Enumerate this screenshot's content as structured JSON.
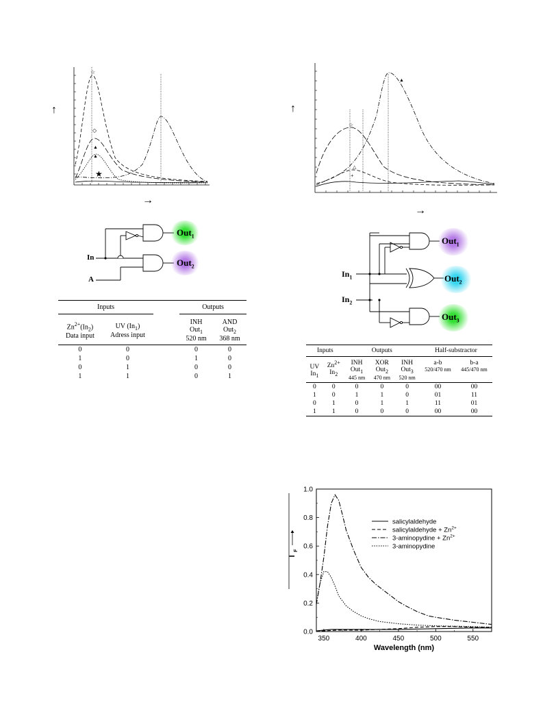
{
  "fig_a": {
    "arrow_up": "↑",
    "arrow_right": "→",
    "markers": [
      "☆",
      "◇",
      "▲",
      "▲",
      "★"
    ]
  },
  "fig_b": {
    "arrow_up": "↑",
    "arrow_right": "→",
    "markers": [
      "▲",
      "☆",
      "△",
      "+"
    ]
  },
  "circuit_a": {
    "input_in": "In",
    "input_a": "A",
    "out1": "Out",
    "out1_sub": "1",
    "out2": "Out",
    "out2_sub": "2",
    "out1_color": "#34e034",
    "out2_color": "#b57be6"
  },
  "circuit_b": {
    "in1": "In",
    "in1_sub": "1",
    "in2": "In",
    "in2_sub": "2",
    "out1": "Out",
    "out1_sub": "1",
    "out2": "Out",
    "out2_sub": "2",
    "out3": "Out",
    "out3_sub": "3",
    "out1_color": "#b57be6",
    "out2_color": "#39d6f0",
    "out3_color": "#34e034"
  },
  "table_a": {
    "group_inputs": "Inputs",
    "group_outputs": "Outputs",
    "col1_a": "Zn",
    "col1_sup": "2+",
    "col1_b": "(In",
    "col1_sub": "2",
    "col1_c": ")",
    "col1_line2": "Data input",
    "col2_a": "UV (In",
    "col2_sub": "1",
    "col2_b": ")",
    "col2_line2": "Adress input",
    "col3_line1": "INH",
    "col3_line2": "Out",
    "col3_sub": "1",
    "col3_line3": "520 nm",
    "col4_line1": "AND",
    "col4_line2": "Out",
    "col4_sub": "2",
    "col4_line3": "368 nm",
    "rows": [
      [
        "0",
        "0",
        "0",
        "0"
      ],
      [
        "1",
        "0",
        "1",
        "0"
      ],
      [
        "0",
        "1",
        "0",
        "0"
      ],
      [
        "1",
        "1",
        "0",
        "1"
      ]
    ]
  },
  "table_b": {
    "group_inputs": "Inputs",
    "group_outputs": "Outputs",
    "group_half": "Half-substractor",
    "uv": "UV",
    "in1": "In",
    "in1_sub": "1",
    "zn": "Zn",
    "zn_sup": "2+",
    "in2": "In",
    "in2_sub": "2",
    "inh1": "INH",
    "out1": "Out",
    "out1_sub": "1",
    "wl1": "445 nm",
    "xor": "XOR",
    "out2": "Out",
    "out2_sub": "2",
    "wl2": "470 nm",
    "inh3": "INH",
    "out3": "Out",
    "out3_sub": "3",
    "wl3": "520 nm",
    "amb": "a-b",
    "amb_wl": "520/470 nm",
    "bma": "b-a",
    "bma_wl": "445/470 nm",
    "rows": [
      [
        "0",
        "0",
        "0",
        "0",
        "0",
        "00",
        "00"
      ],
      [
        "1",
        "0",
        "1",
        "1",
        "0",
        "01",
        "11"
      ],
      [
        "0",
        "1",
        "0",
        "1",
        "1",
        "11",
        "01"
      ],
      [
        "1",
        "1",
        "0",
        "0",
        "0",
        "00",
        "00"
      ]
    ]
  },
  "chart_data": {
    "type": "line",
    "xlabel": "Wavelength (nm)",
    "ylabel": "I",
    "ylabel_sub": "F",
    "xlim": [
      340,
      575
    ],
    "ylim": [
      0.0,
      1.0
    ],
    "xticks": [
      350,
      400,
      450,
      500,
      550
    ],
    "yticks": [
      0.0,
      0.2,
      0.4,
      0.6,
      0.8,
      1.0
    ],
    "xtick_labels": [
      "350",
      "400",
      "450",
      "500",
      "550"
    ],
    "ytick_labels": [
      "0.0",
      "0.2",
      "0.4",
      "0.6",
      "0.8",
      "1.0"
    ],
    "legend_placement": "top-right",
    "series": [
      {
        "name": "salicylaldehyde",
        "dash": "solid",
        "x": [
          340,
          350,
          360,
          380,
          400,
          450,
          500,
          550,
          575
        ],
        "y": [
          0.005,
          0.01,
          0.015,
          0.015,
          0.015,
          0.015,
          0.02,
          0.025,
          0.025
        ]
      },
      {
        "name": "salicylaldehyde + Zn",
        "name_sup": "2+",
        "dash": "dashed",
        "x": [
          340,
          350,
          370,
          400,
          450,
          475,
          500,
          525,
          550,
          575
        ],
        "y": [
          0.0,
          0.005,
          0.01,
          0.01,
          0.02,
          0.03,
          0.035,
          0.035,
          0.03,
          0.03
        ]
      },
      {
        "name": "3-aminopydine + Zn",
        "name_sup": "2+",
        "dash": "dashdot",
        "x": [
          340,
          345,
          350,
          355,
          360,
          365,
          370,
          375,
          380,
          390,
          400,
          410,
          420,
          430,
          440,
          450,
          460,
          475,
          490,
          500,
          525,
          550,
          575
        ],
        "y": [
          0.19,
          0.34,
          0.52,
          0.74,
          0.9,
          0.96,
          0.92,
          0.82,
          0.71,
          0.57,
          0.45,
          0.38,
          0.33,
          0.29,
          0.25,
          0.21,
          0.18,
          0.14,
          0.11,
          0.1,
          0.08,
          0.065,
          0.05
        ]
      },
      {
        "name": "3-aminopydine",
        "dash": "dotted",
        "x": [
          340,
          345,
          350,
          355,
          360,
          365,
          370,
          380,
          390,
          400,
          410,
          425,
          450,
          475,
          500,
          550,
          575
        ],
        "y": [
          0.2,
          0.34,
          0.42,
          0.42,
          0.38,
          0.32,
          0.25,
          0.18,
          0.14,
          0.11,
          0.09,
          0.07,
          0.055,
          0.045,
          0.04,
          0.035,
          0.03
        ]
      }
    ]
  }
}
